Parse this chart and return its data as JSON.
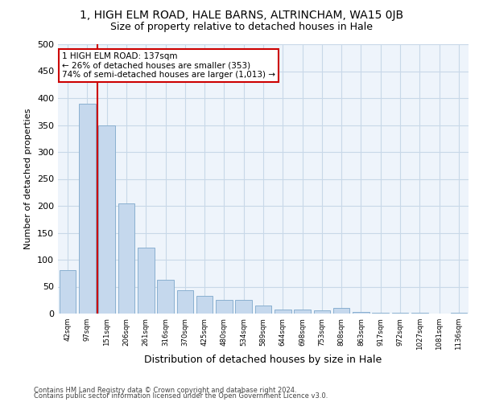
{
  "title": "1, HIGH ELM ROAD, HALE BARNS, ALTRINCHAM, WA15 0JB",
  "subtitle": "Size of property relative to detached houses in Hale",
  "xlabel": "Distribution of detached houses by size in Hale",
  "ylabel": "Number of detached properties",
  "footnote1": "Contains HM Land Registry data © Crown copyright and database right 2024.",
  "footnote2": "Contains public sector information licensed under the Open Government Licence v3.0.",
  "categories": [
    "42sqm",
    "97sqm",
    "151sqm",
    "206sqm",
    "261sqm",
    "316sqm",
    "370sqm",
    "425sqm",
    "480sqm",
    "534sqm",
    "589sqm",
    "644sqm",
    "698sqm",
    "753sqm",
    "808sqm",
    "863sqm",
    "917sqm",
    "972sqm",
    "1027sqm",
    "1081sqm",
    "1136sqm"
  ],
  "values": [
    80,
    390,
    350,
    205,
    123,
    63,
    44,
    33,
    25,
    25,
    15,
    8,
    8,
    6,
    10,
    3,
    1,
    1,
    1,
    0,
    1
  ],
  "bar_color": "#c5d8ed",
  "bar_edge_color": "#8ab0d0",
  "property_line_color": "#cc0000",
  "annotation_text": "1 HIGH ELM ROAD: 137sqm\n← 26% of detached houses are smaller (353)\n74% of semi-detached houses are larger (1,013) →",
  "annotation_box_color": "#cc0000",
  "annotation_box_facecolor": "white",
  "ylim": [
    0,
    500
  ],
  "yticks": [
    0,
    50,
    100,
    150,
    200,
    250,
    300,
    350,
    400,
    450,
    500
  ],
  "grid_color": "#c8d8e8",
  "background_color": "#eef4fb",
  "title_fontsize": 10,
  "subtitle_fontsize": 9
}
